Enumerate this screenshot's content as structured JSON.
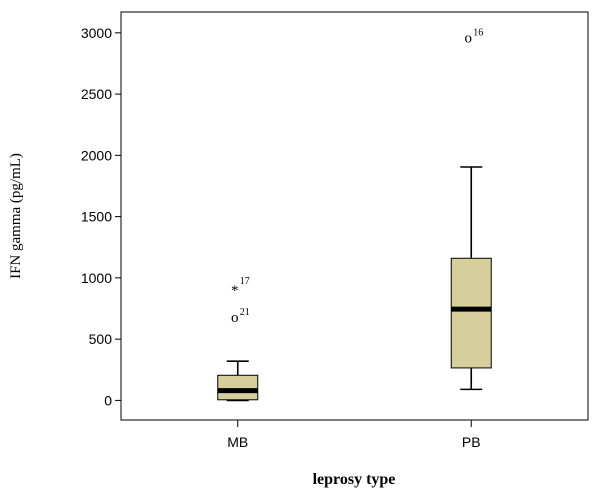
{
  "chart_data": {
    "type": "box",
    "title": "",
    "xlabel": "leprosy type",
    "ylabel": "IFN gamma (pg/mL)",
    "ylim": [
      -160,
      3170
    ],
    "yticks": [
      0,
      500,
      1000,
      1500,
      2000,
      2500,
      3000
    ],
    "grid": false,
    "legend": "none",
    "box_fill": "#d6cf9b",
    "categories": [
      "MB",
      "PB"
    ],
    "boxes": [
      {
        "category": "MB",
        "whisker_low": 0,
        "q1": 5,
        "median": 80,
        "q3": 205,
        "whisker_high": 320
      },
      {
        "category": "PB",
        "whisker_low": 90,
        "q1": 265,
        "median": 745,
        "q3": 1160,
        "whisker_high": 1905
      }
    ],
    "outliers": [
      {
        "category": "MB",
        "value": 935,
        "marker": "*",
        "id": "17"
      },
      {
        "category": "MB",
        "value": 680,
        "marker": "o",
        "id": "21"
      },
      {
        "category": "PB",
        "value": 2960,
        "marker": "o",
        "id": "16"
      }
    ]
  }
}
